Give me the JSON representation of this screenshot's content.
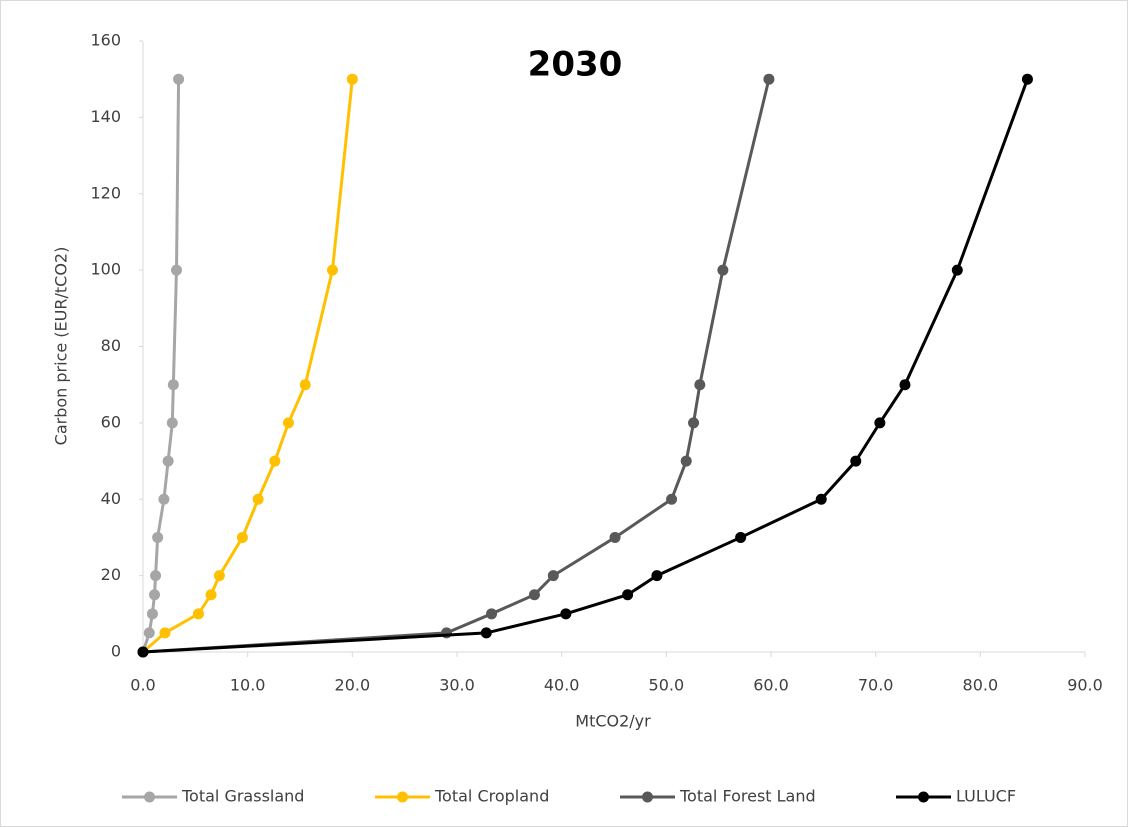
{
  "chart_data": {
    "type": "line",
    "title": "2030",
    "x_label": "MtCO2/yr",
    "y_label": "Carbon price (EUR/tCO2)",
    "xlim": [
      0,
      90
    ],
    "ylim": [
      0,
      160
    ],
    "xticks": [
      {
        "value": 0,
        "label": "0.0"
      },
      {
        "value": 10,
        "label": "10.0"
      },
      {
        "value": 20,
        "label": "20.0"
      },
      {
        "value": 30,
        "label": "30.0"
      },
      {
        "value": 40,
        "label": "40.0"
      },
      {
        "value": 50,
        "label": "50.0"
      },
      {
        "value": 60,
        "label": "60.0"
      },
      {
        "value": 70,
        "label": "70.0"
      },
      {
        "value": 80,
        "label": "80.0"
      },
      {
        "value": 90,
        "label": "90.0"
      }
    ],
    "yticks": [
      0,
      20,
      40,
      60,
      80,
      100,
      120,
      140,
      160
    ],
    "grid": false,
    "legend": "bottom",
    "series": [
      {
        "name": "Total Grassland",
        "color": "#a6a6a6",
        "x": [
          0,
          0.6,
          0.9,
          1.1,
          1.2,
          1.4,
          2.0,
          2.4,
          2.8,
          2.9,
          3.2,
          3.4
        ],
        "values": [
          0,
          5,
          10,
          15,
          20,
          30,
          40,
          50,
          60,
          70,
          100,
          150
        ]
      },
      {
        "name": "Total Cropland",
        "color": "#ffc000",
        "x": [
          0,
          2.1,
          5.3,
          6.5,
          7.3,
          9.5,
          11.0,
          12.6,
          13.9,
          15.5,
          18.1,
          20.0
        ],
        "values": [
          0,
          5,
          10,
          15,
          20,
          30,
          40,
          50,
          60,
          70,
          100,
          150
        ]
      },
      {
        "name": "Total Forest Land",
        "color": "#595959",
        "x": [
          0,
          29.0,
          33.3,
          37.4,
          39.2,
          45.1,
          50.5,
          51.9,
          52.6,
          53.2,
          55.4,
          59.8
        ],
        "values": [
          0,
          5,
          10,
          15,
          20,
          30,
          40,
          50,
          60,
          70,
          100,
          150
        ]
      },
      {
        "name": "LULUCF",
        "color": "#000000",
        "x": [
          0,
          32.8,
          40.4,
          46.3,
          49.1,
          57.1,
          64.8,
          68.1,
          70.4,
          72.8,
          77.8,
          84.5
        ],
        "values": [
          0,
          5,
          10,
          15,
          20,
          30,
          40,
          50,
          60,
          70,
          100,
          150
        ]
      }
    ]
  }
}
